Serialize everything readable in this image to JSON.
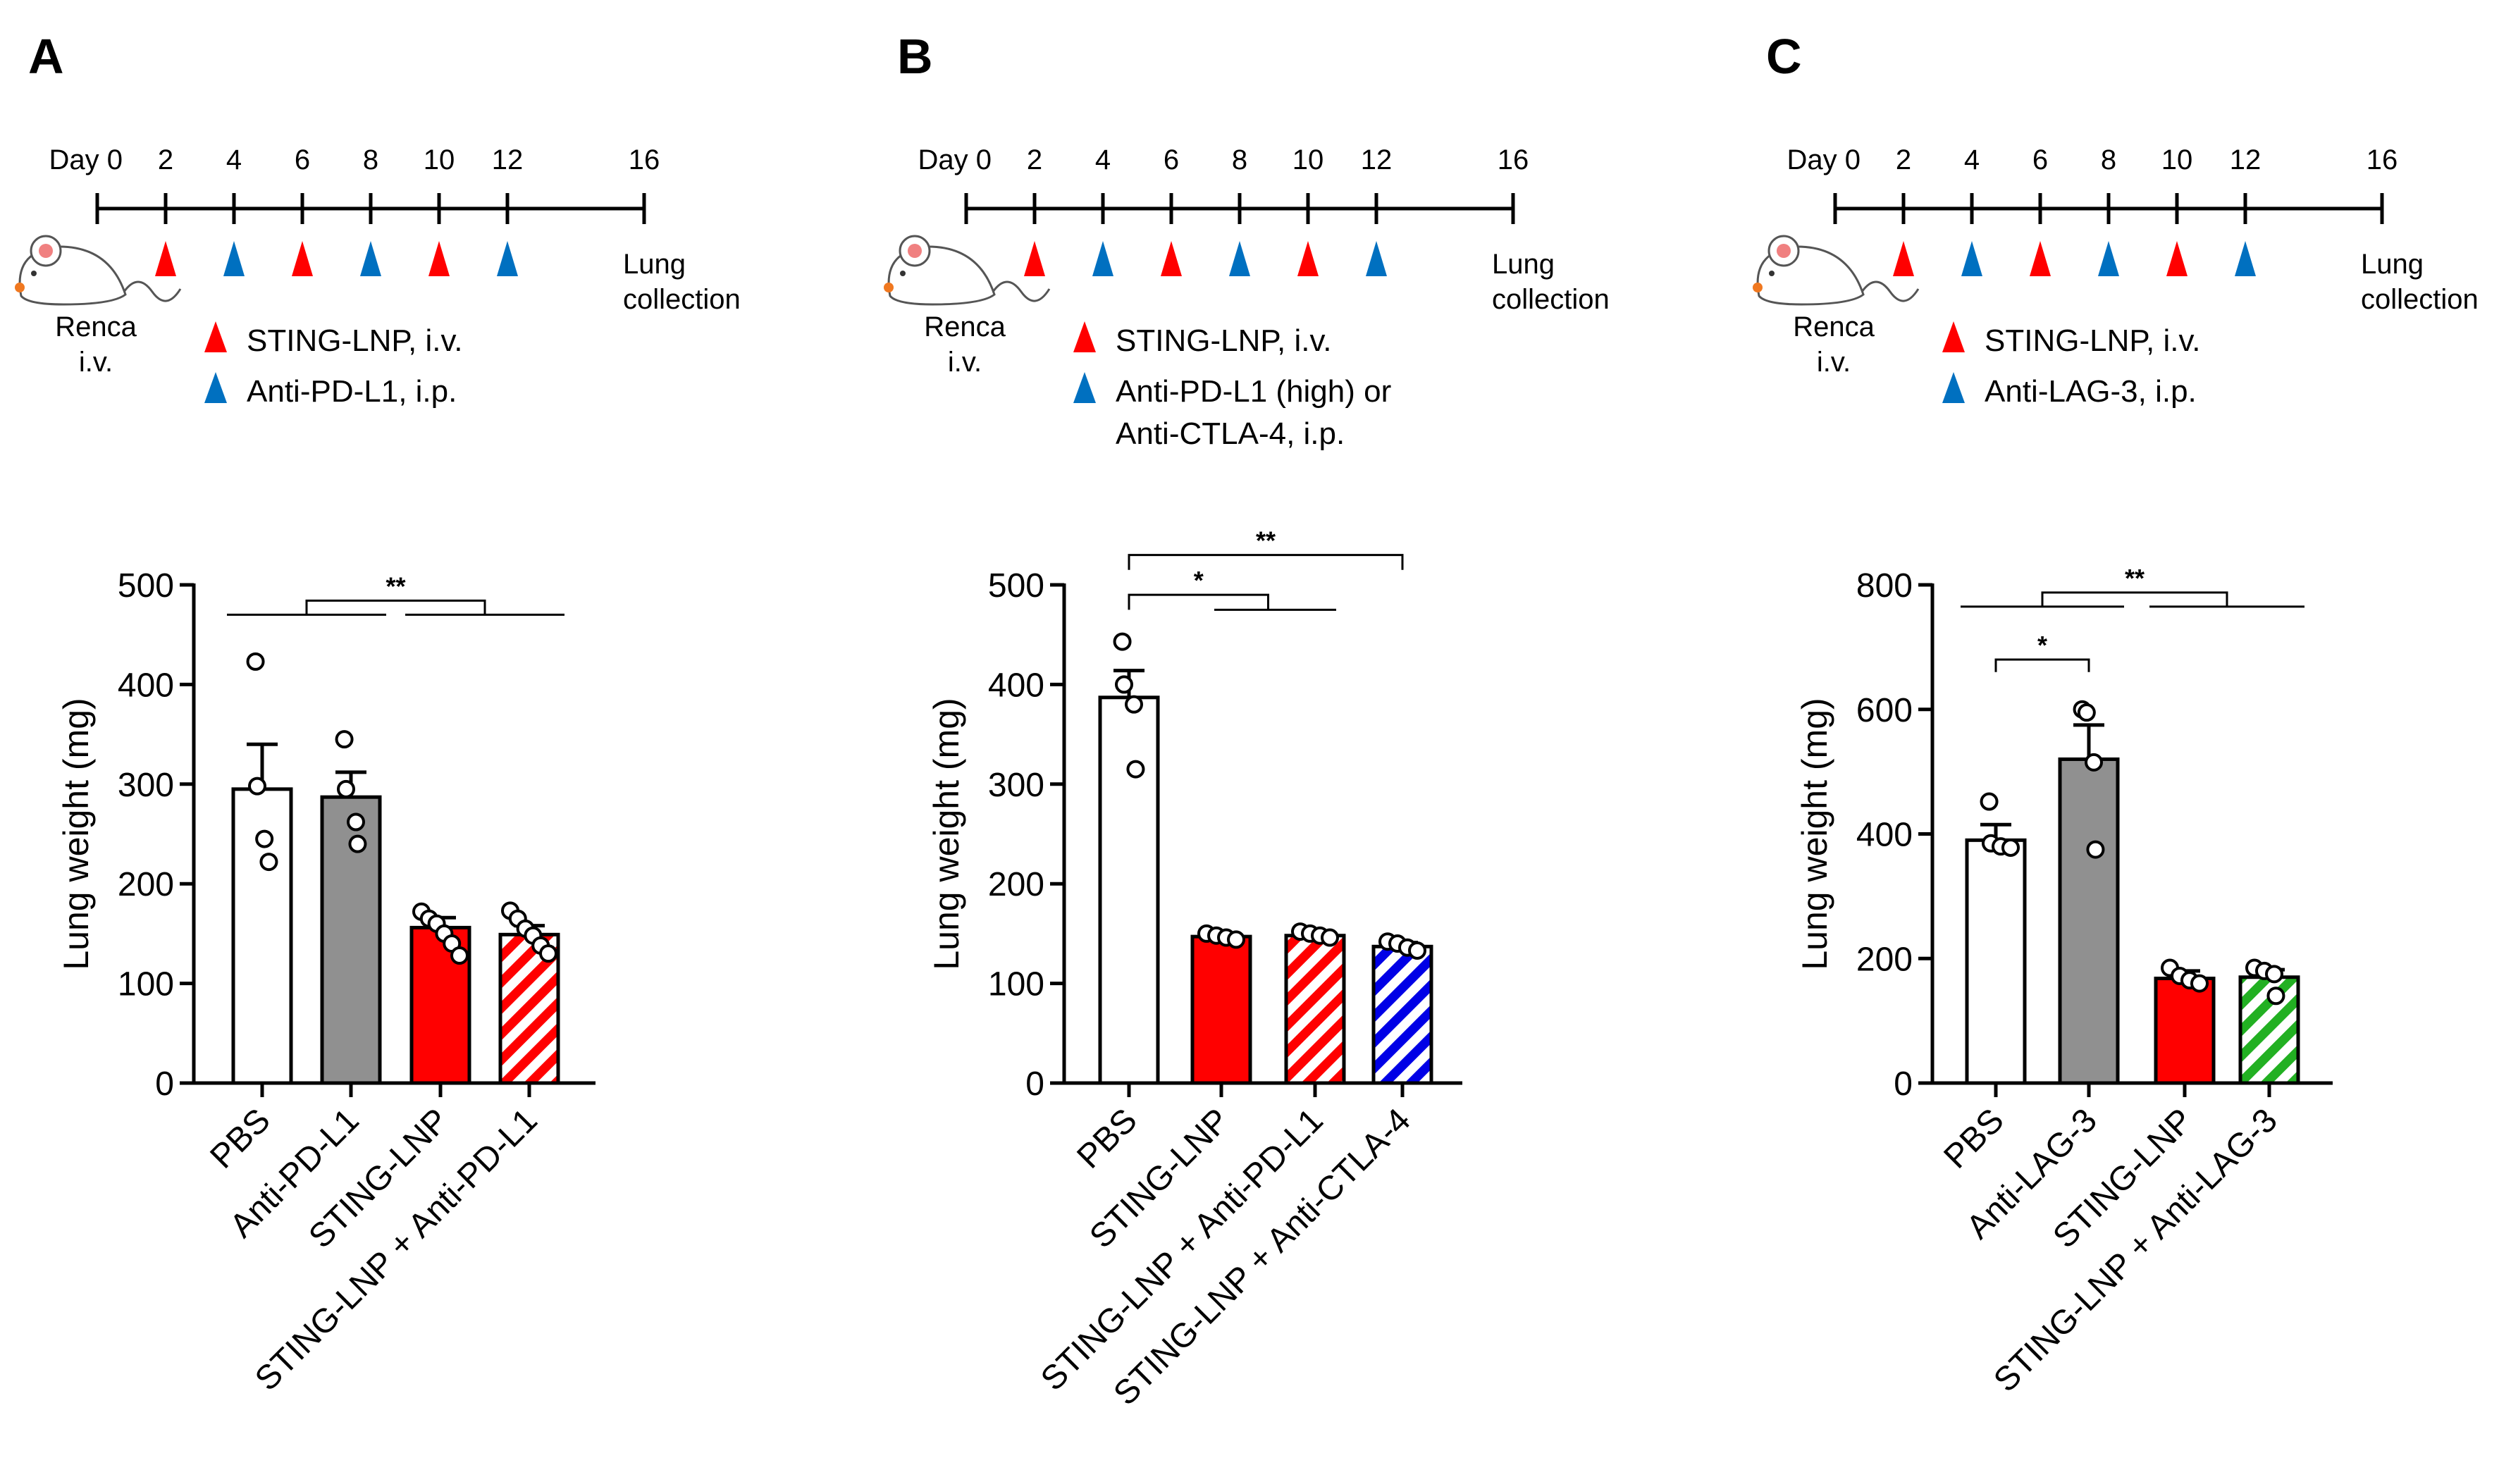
{
  "colors": {
    "red": "#ff0000",
    "blue": "#0070c0",
    "gray": "#909090",
    "navy": "#0000e6",
    "green": "#22b022",
    "mouse_eye": "#f08080",
    "mouse_nose": "#f07820"
  },
  "panels": [
    {
      "letter": "A",
      "timeline": {
        "days": [
          "Day 0",
          "2",
          "4",
          "6",
          "8",
          "10",
          "12",
          "16"
        ],
        "markers": [
          "red",
          "blue",
          "red",
          "blue",
          "red",
          "blue"
        ],
        "end_label_1": "Lung",
        "end_label_2": "collection",
        "mouse_icon": "mouse-icon",
        "mouse_label_1": "Renca",
        "mouse_label_2": "i.v."
      },
      "legend": [
        {
          "color": "red",
          "lines": [
            "STING-LNP, i.v."
          ]
        },
        {
          "color": "blue",
          "lines": [
            "Anti-PD-L1, i.p."
          ]
        }
      ]
    },
    {
      "letter": "B",
      "timeline": {
        "days": [
          "Day 0",
          "2",
          "4",
          "6",
          "8",
          "10",
          "12",
          "16"
        ],
        "markers": [
          "red",
          "blue",
          "red",
          "blue",
          "red",
          "blue"
        ],
        "end_label_1": "Lung",
        "end_label_2": "collection",
        "mouse_icon": "mouse-icon",
        "mouse_label_1": "Renca",
        "mouse_label_2": "i.v."
      },
      "legend": [
        {
          "color": "red",
          "lines": [
            "STING-LNP, i.v."
          ]
        },
        {
          "color": "blue",
          "lines": [
            "Anti-PD-L1 (high) or",
            "Anti-CTLA-4, i.p."
          ]
        }
      ]
    },
    {
      "letter": "C",
      "timeline": {
        "days": [
          "Day 0",
          "2",
          "4",
          "6",
          "8",
          "10",
          "12",
          "16"
        ],
        "markers": [
          "red",
          "blue",
          "red",
          "blue",
          "red",
          "blue"
        ],
        "end_label_1": "Lung",
        "end_label_2": "collection",
        "mouse_icon": "mouse-icon",
        "mouse_label_1": "Renca",
        "mouse_label_2": "i.v."
      },
      "legend": [
        {
          "color": "red",
          "lines": [
            "STING-LNP, i.v."
          ]
        },
        {
          "color": "blue",
          "lines": [
            "Anti-LAG-3, i.p."
          ]
        }
      ]
    }
  ],
  "chart_data": [
    {
      "panel": "A",
      "type": "bar",
      "ylabel": "Lung weight (mg)",
      "ylim": [
        0,
        500
      ],
      "yticks": [
        0,
        100,
        200,
        300,
        400,
        500
      ],
      "categories": [
        "PBS",
        "Anti-PD-L1",
        "STING-LNP",
        "STING-LNP + Anti-PD-L1"
      ],
      "values": [
        295,
        287,
        156,
        149
      ],
      "sem": [
        45,
        25,
        10,
        9
      ],
      "fills": [
        "white",
        "gray",
        "red",
        "red-hatch"
      ],
      "points": [
        [
          423,
          298,
          245,
          222
        ],
        [
          345,
          295,
          262,
          240
        ],
        [
          172,
          165,
          160,
          150,
          140,
          128
        ],
        [
          173,
          165,
          155,
          148,
          138,
          130
        ]
      ],
      "significance": [
        {
          "type": "grouped",
          "left_group": [
            0,
            1
          ],
          "right_group": [
            2,
            3
          ],
          "label": "**"
        }
      ]
    },
    {
      "panel": "B",
      "type": "bar",
      "ylabel": "Lung weight (mg)",
      "ylim": [
        0,
        500
      ],
      "yticks": [
        0,
        100,
        200,
        300,
        400,
        500
      ],
      "categories": [
        "PBS",
        "STING-LNP",
        "STING-LNP + Anti-PD-L1",
        "STING-LNP + Anti-CTLA-4"
      ],
      "values": [
        387,
        147,
        148,
        137
      ],
      "sem": [
        27,
        3,
        3,
        4
      ],
      "fills": [
        "white",
        "red",
        "red-hatch",
        "navy-hatch"
      ],
      "points": [
        [
          443,
          400,
          380,
          315
        ],
        [
          150,
          148,
          146,
          144
        ],
        [
          152,
          150,
          148,
          146
        ],
        [
          142,
          140,
          136,
          133
        ]
      ],
      "significance": [
        {
          "type": "one-to-group",
          "from": 0,
          "group": [
            1,
            2
          ],
          "label": "*"
        },
        {
          "type": "pair",
          "from": 0,
          "to": 3,
          "label": "**"
        }
      ]
    },
    {
      "panel": "C",
      "type": "bar",
      "ylabel": "Lung weight (mg)",
      "ylim": [
        0,
        800
      ],
      "yticks": [
        0,
        200,
        400,
        600,
        800
      ],
      "categories": [
        "PBS",
        "Anti-LAG-3",
        "STING-LNP",
        "STING-LNP + Anti-LAG-3"
      ],
      "values": [
        390,
        520,
        168,
        170
      ],
      "sem": [
        25,
        55,
        12,
        12
      ],
      "fills": [
        "white",
        "gray",
        "red",
        "green-hatch"
      ],
      "points": [
        [
          452,
          385,
          380,
          378
        ],
        [
          600,
          595,
          515,
          375
        ],
        [
          185,
          172,
          165,
          160
        ],
        [
          185,
          180,
          175,
          140
        ]
      ],
      "significance": [
        {
          "type": "pair",
          "from": 0,
          "to": 1,
          "label": "*"
        },
        {
          "type": "grouped",
          "left_group": [
            0,
            1
          ],
          "right_group": [
            2,
            3
          ],
          "label": "**"
        }
      ]
    }
  ]
}
